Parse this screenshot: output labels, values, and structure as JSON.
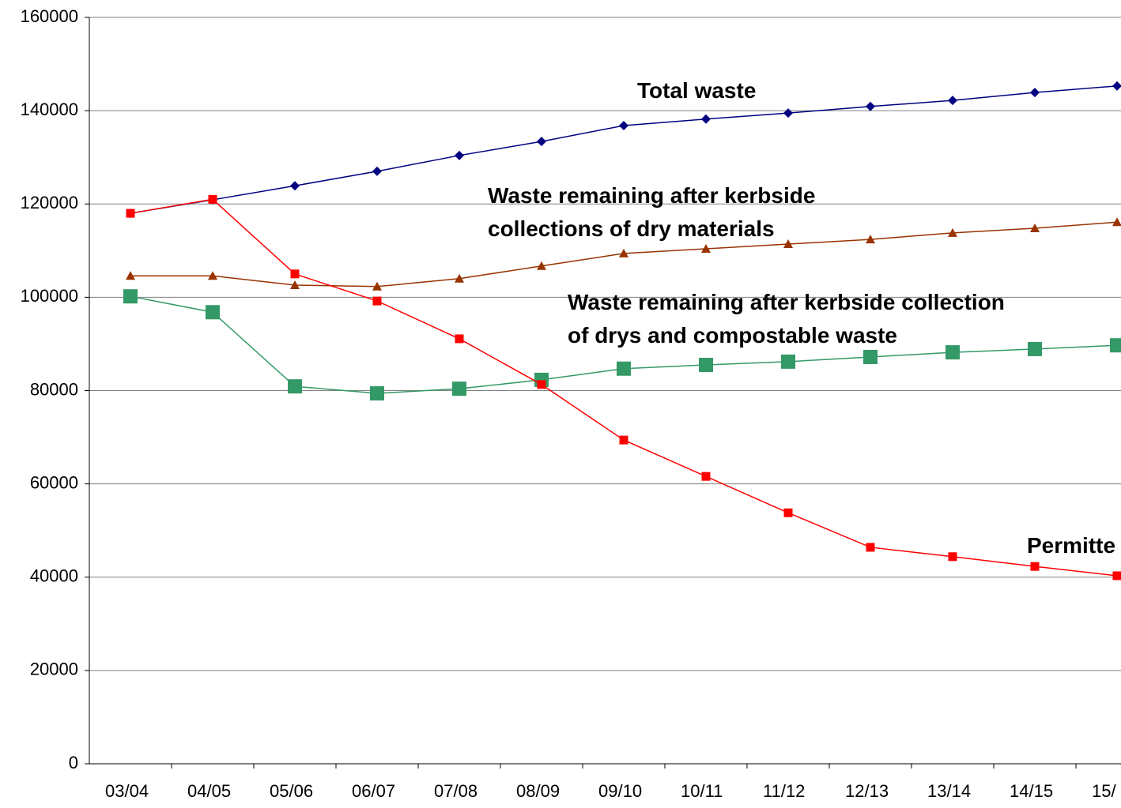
{
  "chart_data": {
    "type": "line",
    "categories": [
      "03/04",
      "04/05",
      "05/06",
      "06/07",
      "07/08",
      "08/09",
      "09/10",
      "10/11",
      "11/12",
      "12/13",
      "13/14",
      "14/15",
      "15/"
    ],
    "series": [
      {
        "color": "#000080",
        "marker": "diamond",
        "values": [
          118000,
          120900,
          123900,
          127000,
          130400,
          133400,
          136800,
          138200,
          139500,
          140900,
          142200,
          143900,
          145300
        ]
      },
      {
        "color": "#993300",
        "marker": "triangle",
        "values": [
          104600,
          104600,
          102600,
          102300,
          104000,
          106700,
          109400,
          110400,
          111400,
          112400,
          113800,
          114800,
          116100
        ]
      },
      {
        "color": "#339966",
        "marker": "big-square",
        "values": [
          100200,
          96800,
          80900,
          79400,
          80400,
          82300,
          84700,
          85500,
          86200,
          87200,
          88200,
          88900,
          89700
        ]
      },
      {
        "color": "#ff0000",
        "marker": "square",
        "values": [
          118000,
          121000,
          105000,
          99200,
          91100,
          81300,
          69400,
          61600,
          53800,
          46400,
          44400,
          42300,
          40300
        ]
      }
    ],
    "annotations": [
      [
        "Total waste"
      ],
      [
        "Waste remaining after kerbside",
        "collections of dry materials"
      ],
      [
        "Waste remaining after kerbside collection",
        "of drys and compostable waste"
      ],
      [
        "Permitte"
      ]
    ],
    "ylim": [
      0,
      160000
    ],
    "yticks": [
      0,
      20000,
      40000,
      60000,
      80000,
      100000,
      120000,
      140000,
      160000
    ],
    "grid": true
  }
}
